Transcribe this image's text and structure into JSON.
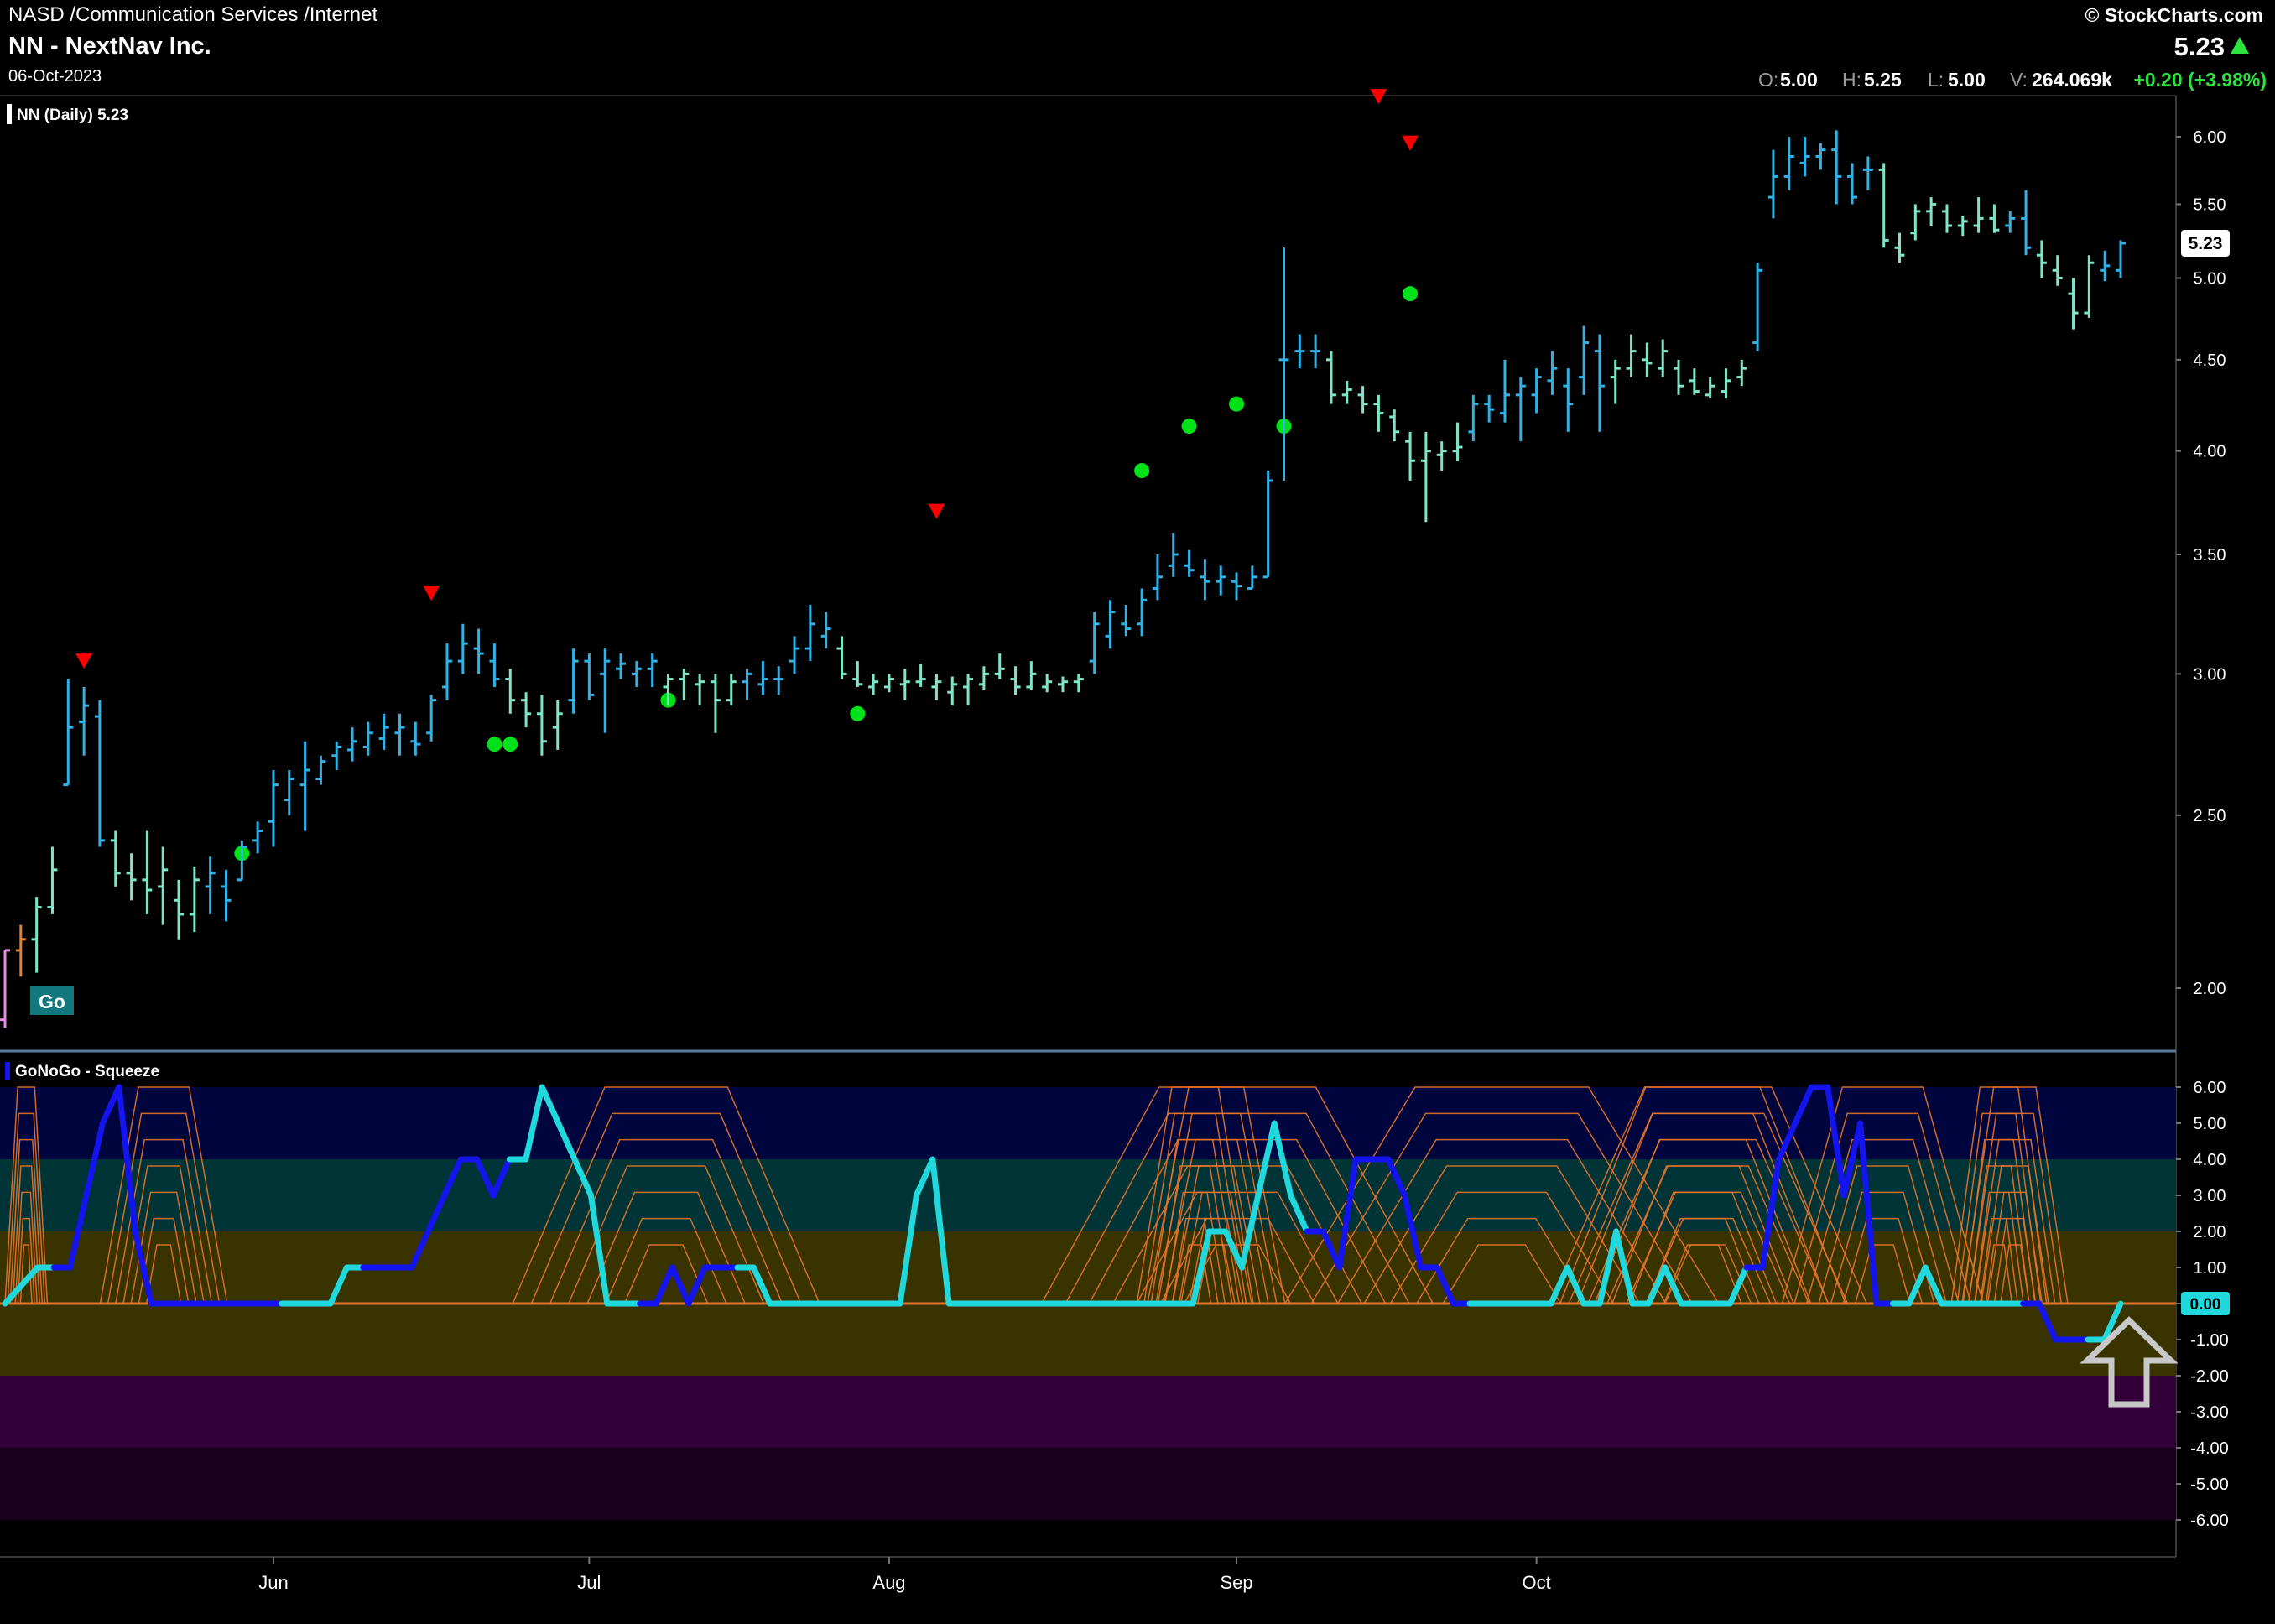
{
  "header": {
    "exchange_line": "NASD /Communication Services /Internet",
    "title": "NN - NextNav Inc.",
    "date": "06-Oct-2023",
    "brand": "© StockCharts.com",
    "last_price": "5.23",
    "ohlc": {
      "o_label": "O:",
      "o_value": "5.00",
      "h_label": "H:",
      "h_value": "5.25",
      "l_label": "L:",
      "l_value": "5.00",
      "v_label": "V:",
      "v_value": "264.069k",
      "change": "+0.20 (+3.98%)"
    }
  },
  "colors": {
    "background": "#000000",
    "bar_strong": "#2fb2e8",
    "bar_weak": "#7fe5c8",
    "bar_pink": "#e98be5",
    "bar_orange": "#e87f2e",
    "signal_dot": "#00e11a",
    "signal_triangle": "#ff0000",
    "osc_blue": "#1414ee",
    "osc_cyan": "#21d8dc",
    "squeeze": "#e8742a",
    "change_up": "#2ee33f"
  },
  "chart_data": [
    {
      "type": "ohlc",
      "legend": "NN (Daily) 5.23",
      "price_label": "5.23",
      "go_label": "Go",
      "scale": "log",
      "y_ticks": [
        "6.00",
        "5.50",
        "5.00",
        "4.50",
        "4.00",
        "3.50",
        "3.00",
        "2.50",
        "2.00"
      ],
      "ylim": [
        1.85,
        6.3
      ],
      "x_ticks": [
        {
          "label": "Jun",
          "index": 17
        },
        {
          "label": "Jul",
          "index": 37
        },
        {
          "label": "Aug",
          "index": 56
        },
        {
          "label": "Sep",
          "index": 78
        },
        {
          "label": "Oct",
          "index": 97
        }
      ],
      "colors_key": "s = strong (blue), w = weak (aqua), p = pink, o = orange",
      "bars": [
        [
          1.92,
          2.1,
          1.9,
          2.1,
          "p"
        ],
        [
          2.1,
          2.17,
          2.03,
          2.13,
          "o"
        ],
        [
          2.13,
          2.25,
          2.04,
          2.22,
          "w"
        ],
        [
          2.22,
          2.4,
          2.2,
          2.33,
          "w"
        ],
        [
          2.6,
          2.98,
          2.6,
          2.8,
          "s"
        ],
        [
          2.82,
          2.95,
          2.7,
          2.88,
          "s"
        ],
        [
          2.84,
          2.9,
          2.4,
          2.42,
          "s"
        ],
        [
          2.42,
          2.45,
          2.28,
          2.32,
          "w"
        ],
        [
          2.32,
          2.38,
          2.24,
          2.3,
          "w"
        ],
        [
          2.3,
          2.45,
          2.2,
          2.27,
          "w"
        ],
        [
          2.28,
          2.4,
          2.17,
          2.33,
          "w"
        ],
        [
          2.24,
          2.3,
          2.13,
          2.2,
          "w"
        ],
        [
          2.2,
          2.34,
          2.15,
          2.3,
          "w"
        ],
        [
          2.28,
          2.37,
          2.2,
          2.32,
          "s"
        ],
        [
          2.28,
          2.33,
          2.18,
          2.24,
          "s"
        ],
        [
          2.3,
          2.42,
          2.3,
          2.4,
          "s"
        ],
        [
          2.42,
          2.48,
          2.38,
          2.45,
          "s"
        ],
        [
          2.48,
          2.65,
          2.4,
          2.6,
          "s"
        ],
        [
          2.55,
          2.65,
          2.5,
          2.62,
          "s"
        ],
        [
          2.6,
          2.75,
          2.45,
          2.65,
          "s"
        ],
        [
          2.62,
          2.7,
          2.6,
          2.68,
          "s"
        ],
        [
          2.7,
          2.75,
          2.65,
          2.73,
          "s"
        ],
        [
          2.72,
          2.8,
          2.68,
          2.75,
          "s"
        ],
        [
          2.73,
          2.82,
          2.7,
          2.78,
          "s"
        ],
        [
          2.76,
          2.85,
          2.72,
          2.8,
          "s"
        ],
        [
          2.78,
          2.85,
          2.7,
          2.8,
          "s"
        ],
        [
          2.75,
          2.82,
          2.7,
          2.74,
          "s"
        ],
        [
          2.78,
          2.92,
          2.75,
          2.9,
          "s"
        ],
        [
          2.95,
          3.12,
          2.9,
          3.05,
          "s"
        ],
        [
          3.05,
          3.2,
          3.0,
          3.12,
          "s"
        ],
        [
          3.1,
          3.18,
          3.0,
          3.08,
          "s"
        ],
        [
          3.05,
          3.12,
          2.95,
          2.98,
          "s"
        ],
        [
          2.98,
          3.02,
          2.85,
          2.9,
          "w"
        ],
        [
          2.9,
          2.93,
          2.8,
          2.85,
          "w"
        ],
        [
          2.85,
          2.92,
          2.7,
          2.75,
          "w"
        ],
        [
          2.8,
          2.9,
          2.72,
          2.85,
          "w"
        ],
        [
          2.9,
          3.1,
          2.85,
          3.05,
          "s"
        ],
        [
          3.05,
          3.08,
          2.9,
          2.92,
          "s"
        ],
        [
          3.0,
          3.1,
          2.78,
          3.05,
          "s"
        ],
        [
          3.02,
          3.08,
          2.98,
          3.04,
          "s"
        ],
        [
          3.0,
          3.05,
          2.95,
          3.02,
          "s"
        ],
        [
          3.02,
          3.08,
          2.95,
          3.05,
          "s"
        ],
        [
          2.95,
          3.0,
          2.88,
          2.98,
          "w"
        ],
        [
          2.98,
          3.02,
          2.9,
          3.0,
          "w"
        ],
        [
          2.96,
          3.0,
          2.88,
          2.97,
          "w"
        ],
        [
          2.97,
          3.0,
          2.78,
          2.9,
          "w"
        ],
        [
          2.9,
          3.0,
          2.88,
          2.97,
          "w"
        ],
        [
          2.97,
          3.02,
          2.9,
          3.0,
          "s"
        ],
        [
          2.96,
          3.05,
          2.92,
          2.98,
          "s"
        ],
        [
          2.98,
          3.03,
          2.92,
          2.98,
          "s"
        ],
        [
          3.05,
          3.15,
          3.0,
          3.1,
          "s"
        ],
        [
          3.1,
          3.28,
          3.05,
          3.2,
          "s"
        ],
        [
          3.15,
          3.25,
          3.1,
          3.18,
          "s"
        ],
        [
          3.1,
          3.15,
          2.98,
          3.0,
          "w"
        ],
        [
          2.98,
          3.05,
          2.95,
          2.96,
          "w"
        ],
        [
          2.95,
          3.0,
          2.92,
          2.97,
          "w"
        ],
        [
          2.95,
          3.0,
          2.93,
          2.98,
          "w"
        ],
        [
          2.96,
          3.02,
          2.9,
          2.97,
          "w"
        ],
        [
          2.97,
          3.04,
          2.95,
          2.98,
          "w"
        ],
        [
          2.95,
          3.0,
          2.9,
          2.97,
          "w"
        ],
        [
          2.93,
          2.99,
          2.88,
          2.96,
          "w"
        ],
        [
          2.95,
          3.0,
          2.88,
          2.98,
          "w"
        ],
        [
          2.96,
          3.03,
          2.94,
          3.0,
          "w"
        ],
        [
          3.0,
          3.08,
          2.98,
          3.02,
          "w"
        ],
        [
          2.98,
          3.03,
          2.92,
          2.95,
          "w"
        ],
        [
          2.95,
          3.05,
          2.94,
          3.0,
          "w"
        ],
        [
          2.95,
          3.0,
          2.93,
          2.97,
          "w"
        ],
        [
          2.96,
          2.99,
          2.93,
          2.97,
          "w"
        ],
        [
          2.97,
          3.0,
          2.93,
          2.98,
          "w"
        ],
        [
          3.05,
          3.25,
          3.0,
          3.2,
          "s"
        ],
        [
          3.15,
          3.3,
          3.1,
          3.25,
          "s"
        ],
        [
          3.2,
          3.28,
          3.15,
          3.18,
          "s"
        ],
        [
          3.2,
          3.35,
          3.15,
          3.3,
          "s"
        ],
        [
          3.35,
          3.5,
          3.3,
          3.4,
          "s"
        ],
        [
          3.45,
          3.6,
          3.4,
          3.5,
          "s"
        ],
        [
          3.45,
          3.52,
          3.4,
          3.43,
          "s"
        ],
        [
          3.4,
          3.48,
          3.3,
          3.38,
          "s"
        ],
        [
          3.38,
          3.45,
          3.32,
          3.4,
          "s"
        ],
        [
          3.38,
          3.42,
          3.3,
          3.36,
          "s"
        ],
        [
          3.35,
          3.45,
          3.35,
          3.4,
          "s"
        ],
        [
          3.4,
          3.9,
          3.4,
          3.85,
          "s"
        ],
        [
          4.5,
          5.2,
          3.85,
          4.5,
          "s"
        ],
        [
          4.55,
          4.65,
          4.45,
          4.55,
          "s"
        ],
        [
          4.55,
          4.65,
          4.45,
          4.55,
          "s"
        ],
        [
          4.5,
          4.55,
          4.25,
          4.3,
          "w"
        ],
        [
          4.3,
          4.38,
          4.25,
          4.33,
          "w"
        ],
        [
          4.3,
          4.35,
          4.2,
          4.25,
          "w"
        ],
        [
          4.25,
          4.3,
          4.1,
          4.2,
          "w"
        ],
        [
          4.18,
          4.22,
          4.05,
          4.1,
          "w"
        ],
        [
          4.05,
          4.1,
          3.85,
          3.95,
          "w"
        ],
        [
          3.95,
          4.1,
          3.65,
          4.0,
          "w"
        ],
        [
          3.98,
          4.05,
          3.9,
          4.0,
          "w"
        ],
        [
          4.0,
          4.15,
          3.95,
          4.02,
          "w"
        ],
        [
          4.1,
          4.3,
          4.05,
          4.25,
          "s"
        ],
        [
          4.25,
          4.3,
          4.15,
          4.22,
          "s"
        ],
        [
          4.2,
          4.5,
          4.15,
          4.3,
          "s"
        ],
        [
          4.3,
          4.4,
          4.05,
          4.35,
          "s"
        ],
        [
          4.3,
          4.45,
          4.2,
          4.4,
          "s"
        ],
        [
          4.38,
          4.55,
          4.3,
          4.45,
          "s"
        ],
        [
          4.35,
          4.45,
          4.1,
          4.25,
          "s"
        ],
        [
          4.4,
          4.7,
          4.3,
          4.6,
          "s"
        ],
        [
          4.55,
          4.65,
          4.1,
          4.35,
          "s"
        ],
        [
          4.4,
          4.5,
          4.25,
          4.45,
          "w"
        ],
        [
          4.45,
          4.65,
          4.4,
          4.55,
          "w"
        ],
        [
          4.5,
          4.6,
          4.4,
          4.48,
          "w"
        ],
        [
          4.45,
          4.62,
          4.4,
          4.55,
          "w"
        ],
        [
          4.45,
          4.5,
          4.3,
          4.35,
          "w"
        ],
        [
          4.38,
          4.45,
          4.3,
          4.32,
          "w"
        ],
        [
          4.3,
          4.4,
          4.28,
          4.35,
          "w"
        ],
        [
          4.32,
          4.45,
          4.28,
          4.38,
          "w"
        ],
        [
          4.4,
          4.5,
          4.35,
          4.45,
          "w"
        ],
        [
          4.6,
          5.1,
          4.55,
          5.05,
          "s"
        ],
        [
          5.55,
          5.9,
          5.4,
          5.7,
          "s"
        ],
        [
          5.7,
          6.0,
          5.6,
          5.85,
          "s"
        ],
        [
          5.8,
          6.0,
          5.7,
          5.85,
          "s"
        ],
        [
          5.85,
          5.95,
          5.75,
          5.9,
          "s"
        ],
        [
          5.9,
          6.05,
          5.5,
          5.7,
          "s"
        ],
        [
          5.7,
          5.8,
          5.5,
          5.55,
          "s"
        ],
        [
          5.75,
          5.85,
          5.6,
          5.75,
          "s"
        ],
        [
          5.75,
          5.8,
          5.2,
          5.25,
          "w"
        ],
        [
          5.2,
          5.3,
          5.1,
          5.15,
          "w"
        ],
        [
          5.3,
          5.5,
          5.25,
          5.45,
          "w"
        ],
        [
          5.45,
          5.55,
          5.35,
          5.5,
          "w"
        ],
        [
          5.45,
          5.5,
          5.3,
          5.35,
          "w"
        ],
        [
          5.35,
          5.42,
          5.28,
          5.38,
          "w"
        ],
        [
          5.35,
          5.55,
          5.3,
          5.4,
          "w"
        ],
        [
          5.4,
          5.5,
          5.3,
          5.32,
          "w"
        ],
        [
          5.35,
          5.45,
          5.3,
          5.4,
          "s"
        ],
        [
          5.4,
          5.6,
          5.15,
          5.2,
          "s"
        ],
        [
          5.15,
          5.25,
          5.0,
          5.1,
          "w"
        ],
        [
          5.05,
          5.15,
          4.95,
          5.0,
          "w"
        ],
        [
          4.9,
          5.0,
          4.68,
          4.78,
          "w"
        ],
        [
          4.78,
          5.15,
          4.75,
          5.1,
          "w"
        ],
        [
          5.05,
          5.18,
          4.98,
          5.08,
          "s"
        ],
        [
          5.05,
          5.25,
          5.0,
          5.23,
          "s"
        ]
      ],
      "signals": {
        "dots": [
          [
            15,
            2.38
          ],
          [
            31,
            2.74
          ],
          [
            32,
            2.74
          ],
          [
            42,
            2.9
          ],
          [
            54,
            2.85
          ],
          [
            72,
            3.9
          ],
          [
            75,
            4.13
          ],
          [
            78,
            4.25
          ],
          [
            81,
            4.13
          ],
          [
            89,
            4.9
          ]
        ],
        "triangles": [
          [
            5,
            3.05
          ],
          [
            27,
            3.33
          ],
          [
            59,
            3.7
          ],
          [
            87,
            6.32
          ],
          [
            89,
            5.95
          ]
        ]
      }
    },
    {
      "type": "line",
      "legend": "GoNoGo - Squeeze",
      "value_label": "0.00",
      "y_ticks": [
        "6.00",
        "5.00",
        "4.00",
        "3.00",
        "2.00",
        "1.00",
        "0.00",
        "-1.00",
        "-2.00",
        "-3.00",
        "-4.00",
        "-5.00",
        "-6.00"
      ],
      "ylim": [
        -6,
        6
      ],
      "oscillator": [
        {
          "c": "c",
          "v": [
            0,
            0.5,
            1,
            1
          ]
        },
        {
          "c": "b",
          "v": [
            1,
            3,
            5,
            6,
            2,
            0,
            0,
            0,
            0,
            0,
            0,
            0,
            0,
            0
          ]
        },
        {
          "c": "c",
          "v": [
            0,
            0,
            0,
            1,
            1
          ]
        },
        {
          "c": "b",
          "v": [
            1,
            1,
            1,
            2,
            3,
            4,
            4,
            3,
            4
          ]
        },
        {
          "c": "c",
          "v": [
            4,
            6,
            5,
            4,
            3,
            0,
            0,
            0
          ]
        },
        {
          "c": "b",
          "v": [
            0,
            1,
            0,
            1,
            1,
            1
          ]
        },
        {
          "c": "c",
          "v": [
            1,
            0,
            0,
            0,
            0,
            0,
            0,
            0,
            0,
            0,
            3,
            4,
            0,
            0,
            0,
            0,
            0,
            0,
            0,
            0,
            0,
            0,
            0,
            0,
            0,
            0,
            0,
            0,
            2,
            2,
            1,
            3,
            5,
            3,
            2
          ]
        },
        {
          "c": "b",
          "v": [
            2,
            1,
            4,
            4,
            4,
            3,
            1,
            1,
            0,
            0
          ]
        },
        {
          "c": "c",
          "v": [
            0,
            0,
            0,
            0,
            0,
            1,
            0,
            0,
            2,
            0,
            0,
            1,
            0,
            0,
            0,
            0,
            1
          ]
        },
        {
          "c": "b",
          "v": [
            1,
            4,
            5,
            6,
            6,
            3,
            5,
            0,
            0
          ]
        },
        {
          "c": "c",
          "v": [
            0,
            1,
            0,
            0,
            0,
            0,
            0,
            0
          ]
        },
        {
          "c": "b",
          "v": [
            0,
            -1,
            -1,
            -1
          ]
        },
        {
          "c": "c",
          "v": [
            -1,
            0
          ]
        }
      ],
      "squeeze_bursts": [
        [
          0,
          4
        ],
        [
          9,
          12
        ],
        [
          48,
          29
        ],
        [
          98,
          37
        ],
        [
          107,
          11
        ],
        [
          108,
          13
        ],
        [
          121,
          41
        ],
        [
          146,
          30
        ],
        [
          147,
          27
        ],
        [
          168,
          19
        ],
        [
          184,
          9
        ],
        [
          185,
          10
        ]
      ],
      "arrow": "up"
    }
  ]
}
